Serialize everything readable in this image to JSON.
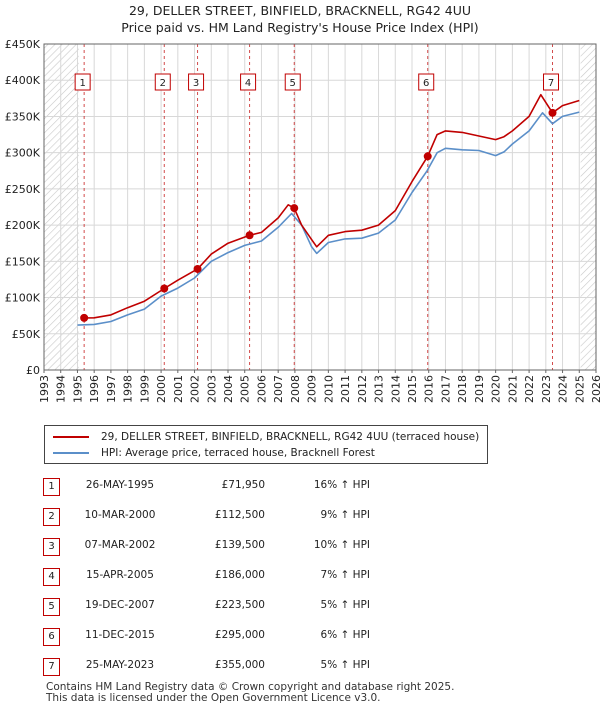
{
  "header": {
    "title_line1": "29, DELLER STREET, BINFIELD, BRACKNELL, RG42 4UU",
    "title_line2": "Price paid vs. HM Land Registry's House Price Index (HPI)"
  },
  "colors": {
    "property": "#c00000",
    "hpi": "#5b8fc9",
    "hatch": "#c8c8c8",
    "grid": "#d8d8d8",
    "marker_border": "#c00000"
  },
  "legend": {
    "property_label": "29, DELLER STREET, BINFIELD, BRACKNELL, RG42 4UU (terraced house)",
    "hpi_label": "HPI: Average price, terraced house, Bracknell Forest"
  },
  "sales": [
    {
      "num": "1",
      "date": "26-MAY-1995",
      "price": "£71,950",
      "hpi": "16% ↑ HPI"
    },
    {
      "num": "2",
      "date": "10-MAR-2000",
      "price": "£112,500",
      "hpi": "9% ↑ HPI"
    },
    {
      "num": "3",
      "date": "07-MAR-2002",
      "price": "£139,500",
      "hpi": "10% ↑ HPI"
    },
    {
      "num": "4",
      "date": "15-APR-2005",
      "price": "£186,000",
      "hpi": "7% ↑ HPI"
    },
    {
      "num": "5",
      "date": "19-DEC-2007",
      "price": "£223,500",
      "hpi": "5% ↑ HPI"
    },
    {
      "num": "6",
      "date": "11-DEC-2015",
      "price": "£295,000",
      "hpi": "6% ↑ HPI"
    },
    {
      "num": "7",
      "date": "25-MAY-2023",
      "price": "£355,000",
      "hpi": "5% ↑ HPI"
    }
  ],
  "footer": {
    "line1": "Contains HM Land Registry data © Crown copyright and database right 2025.",
    "line2": "This data is licensed under the Open Government Licence v3.0."
  },
  "chart_data": {
    "type": "line",
    "title": "29, DELLER STREET, BINFIELD, BRACKNELL, RG42 4UU — Price paid vs. HM Land Registry's House Price Index (HPI)",
    "xlabel": "",
    "ylabel": "",
    "xlim": [
      1993,
      2026
    ],
    "ylim": [
      0,
      450000
    ],
    "grid": true,
    "legend_position": "bottom",
    "y_ticks": [
      0,
      50000,
      100000,
      150000,
      200000,
      250000,
      300000,
      350000,
      400000,
      450000
    ],
    "y_tick_labels": [
      "£0",
      "£50K",
      "£100K",
      "£150K",
      "£200K",
      "£250K",
      "£300K",
      "£350K",
      "£400K",
      "£450K"
    ],
    "x_ticks": [
      1993,
      1994,
      1995,
      1996,
      1997,
      1998,
      1999,
      2000,
      2001,
      2002,
      2003,
      2004,
      2005,
      2006,
      2007,
      2008,
      2009,
      2010,
      2011,
      2012,
      2013,
      2014,
      2015,
      2016,
      2017,
      2018,
      2019,
      2020,
      2021,
      2022,
      2023,
      2024,
      2025,
      2026
    ],
    "x_tick_labels": [
      "1993",
      "1994",
      "1995",
      "1996",
      "1997",
      "1998",
      "1999",
      "2000",
      "2001",
      "2002",
      "2003",
      "2004",
      "2005",
      "2006",
      "2007",
      "2008",
      "2009",
      "2010",
      "2011",
      "2012",
      "2013",
      "2014",
      "2015",
      "2016",
      "2017",
      "2018",
      "2019",
      "2020",
      "2021",
      "2022",
      "2023",
      "2024",
      "2025",
      "2026"
    ],
    "hatched_ranges": [
      [
        1993,
        1995.08
      ],
      [
        2025.08,
        2026
      ]
    ],
    "series": [
      {
        "name": "29, DELLER STREET, BINFIELD, BRACKNELL, RG42 4UU (terraced house)",
        "x": [
          1995.4,
          1996,
          1997,
          1998,
          1999,
          2000.19,
          2001,
          2002.18,
          2003,
          2004,
          2005.29,
          2006,
          2007,
          2007.6,
          2007.96,
          2008.4,
          2009,
          2009.3,
          2010,
          2011,
          2012,
          2013,
          2014,
          2015,
          2015.94,
          2016.5,
          2017,
          2018,
          2019,
          2020,
          2020.5,
          2021,
          2022,
          2022.7,
          2023.4,
          2024,
          2025
        ],
        "y": [
          71950,
          72000,
          76000,
          86000,
          95000,
          112500,
          124000,
          139500,
          160000,
          175000,
          186000,
          190000,
          210000,
          228000,
          223500,
          200000,
          180000,
          170000,
          186000,
          191000,
          193000,
          200000,
          220000,
          260000,
          295000,
          325000,
          330000,
          328000,
          323000,
          318000,
          322000,
          330000,
          350000,
          380000,
          355000,
          365000,
          372000
        ]
      },
      {
        "name": "HPI: Average price, terraced house, Bracknell Forest",
        "x": [
          1995,
          1996,
          1997,
          1998,
          1999,
          2000,
          2001,
          2002,
          2003,
          2004,
          2005,
          2006,
          2007,
          2007.8,
          2008.4,
          2009,
          2009.3,
          2010,
          2011,
          2012,
          2013,
          2014,
          2015,
          2015.9,
          2016.5,
          2017,
          2018,
          2019,
          2020,
          2020.5,
          2021,
          2022,
          2022.8,
          2023.4,
          2024,
          2025
        ],
        "y": [
          62000,
          63000,
          67000,
          76000,
          84000,
          102000,
          113000,
          127000,
          150000,
          162000,
          172000,
          178000,
          197000,
          216000,
          200000,
          170000,
          161000,
          176000,
          181000,
          182000,
          189000,
          207000,
          245000,
          275000,
          300000,
          306000,
          304000,
          303000,
          296000,
          301000,
          312000,
          330000,
          355000,
          340000,
          350000,
          356000
        ]
      }
    ],
    "sale_markers": [
      {
        "label": "1",
        "x": 1995.4,
        "y": 71950
      },
      {
        "label": "2",
        "x": 2000.19,
        "y": 112500
      },
      {
        "label": "3",
        "x": 2002.18,
        "y": 139500
      },
      {
        "label": "4",
        "x": 2005.29,
        "y": 186000
      },
      {
        "label": "5",
        "x": 2007.96,
        "y": 223500
      },
      {
        "label": "6",
        "x": 2015.94,
        "y": 295000
      },
      {
        "label": "7",
        "x": 2023.4,
        "y": 355000
      }
    ]
  }
}
